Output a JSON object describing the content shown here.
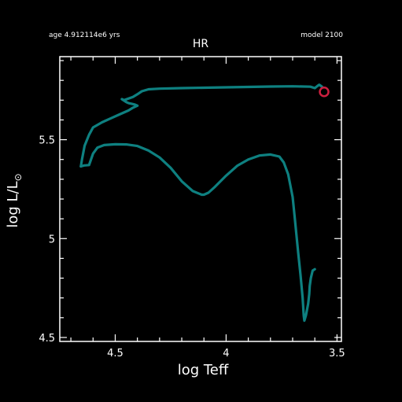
{
  "header": {
    "age_text": "age 4.912114e6 yrs",
    "model_text": "model 2100"
  },
  "chart_data": {
    "type": "line",
    "title": "HR",
    "xlabel": "log Teff",
    "ylabel_main": "log L/L",
    "ylabel_sun_symbol": "⊙",
    "xlim": [
      4.75,
      3.48
    ],
    "ylim": [
      4.48,
      5.92
    ],
    "x_reversed": true,
    "x_ticks": [
      {
        "v": 4.5,
        "label": "4.5"
      },
      {
        "v": 4.0,
        "label": "4"
      },
      {
        "v": 3.5,
        "label": "3.5"
      }
    ],
    "y_ticks": [
      {
        "v": 4.5,
        "label": "4.5"
      },
      {
        "v": 5.0,
        "label": "5"
      },
      {
        "v": 5.5,
        "label": "5.5"
      }
    ],
    "grid": false,
    "series": [
      {
        "color": "#0e8080",
        "x": [
          4.655,
          4.64,
          4.618,
          4.6,
          4.58,
          4.55,
          4.5,
          4.45,
          4.4,
          4.35,
          4.3,
          4.25,
          4.2,
          4.15,
          4.11,
          4.1,
          4.08,
          4.05,
          4.0,
          3.95,
          3.9,
          3.85,
          3.8,
          3.76,
          3.74,
          3.72,
          3.7,
          3.69,
          3.675,
          3.665,
          3.655,
          3.65,
          3.647,
          3.64,
          3.63,
          3.625,
          3.623,
          3.618,
          3.61,
          3.6
        ],
        "y": [
          5.365,
          5.37,
          5.372,
          5.43,
          5.46,
          5.473,
          5.477,
          5.476,
          5.468,
          5.445,
          5.41,
          5.358,
          5.29,
          5.24,
          5.222,
          5.222,
          5.232,
          5.262,
          5.318,
          5.368,
          5.4,
          5.42,
          5.425,
          5.415,
          5.385,
          5.325,
          5.21,
          5.1,
          4.93,
          4.82,
          4.7,
          4.61,
          4.585,
          4.612,
          4.67,
          4.72,
          4.76,
          4.8,
          4.838,
          4.845
        ]
      },
      {
        "color": "#0e8080",
        "x": [
          4.655,
          4.65,
          4.638,
          4.618,
          4.6,
          4.56,
          4.52,
          4.48,
          4.44,
          4.42,
          4.4,
          4.41,
          4.42,
          4.44,
          4.45,
          4.47,
          4.46,
          4.42,
          4.4,
          4.38,
          4.35,
          4.3,
          4.2,
          4.1,
          4.0,
          3.9,
          3.8,
          3.7,
          3.62,
          3.6,
          3.59,
          3.58,
          3.57,
          3.565
        ],
        "y": [
          5.365,
          5.4,
          5.47,
          5.525,
          5.562,
          5.588,
          5.608,
          5.628,
          5.648,
          5.662,
          5.672,
          5.677,
          5.68,
          5.685,
          5.69,
          5.705,
          5.7,
          5.716,
          5.73,
          5.745,
          5.755,
          5.758,
          5.761,
          5.763,
          5.765,
          5.767,
          5.769,
          5.77,
          5.768,
          5.761,
          5.77,
          5.778,
          5.77,
          5.765
        ]
      }
    ],
    "marker": {
      "x": 3.558,
      "y": 5.742,
      "color": "#cc1f3f",
      "shape": "circle"
    }
  }
}
